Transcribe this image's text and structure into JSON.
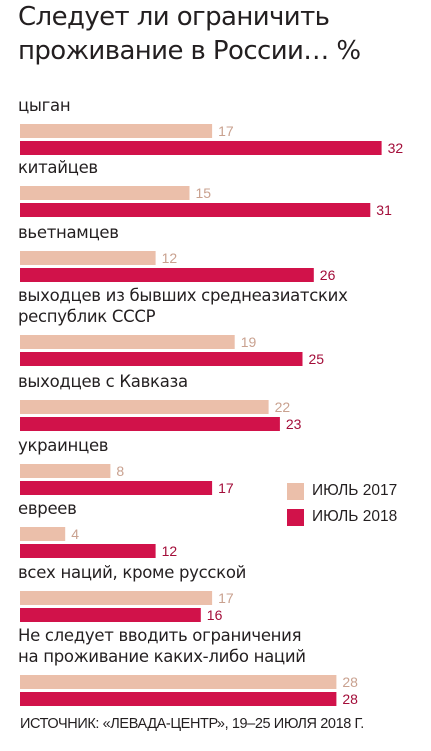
{
  "chart_data": {
    "type": "bar",
    "orientation": "horizontal",
    "title_lines": [
      "Следует ли ограничить",
      "проживание в России… %"
    ],
    "categories": [
      [
        "цыган"
      ],
      [
        "китайцев"
      ],
      [
        "вьетнамцев"
      ],
      [
        "выходцев из бывших среднеазиатских",
        "республик СССР"
      ],
      [
        "выходцев с Кавказа"
      ],
      [
        "украинцев"
      ],
      [
        "евреев"
      ],
      [
        "всех наций, кроме русской"
      ],
      [
        "Не следует вводить ограничения",
        "на проживание каких-либо наций"
      ]
    ],
    "series": [
      {
        "name": "ИЮЛЬ 2017",
        "color": "#ebbfaa",
        "label_color": "#c9a18f",
        "values": [
          17,
          15,
          12,
          19,
          22,
          8,
          4,
          17,
          28
        ]
      },
      {
        "name": "ИЮЛЬ 2018",
        "color": "#d1124a",
        "label_color": "#a30d39",
        "values": [
          32,
          31,
          26,
          25,
          23,
          17,
          12,
          16,
          28
        ]
      }
    ],
    "xlim": [
      0,
      32
    ],
    "grid": false,
    "legend_position": "right",
    "source": "ИСТОЧНИК: «ЛЕВАДА-ЦЕНТР», 19–25 ИЮЛЯ 2018 Г."
  }
}
